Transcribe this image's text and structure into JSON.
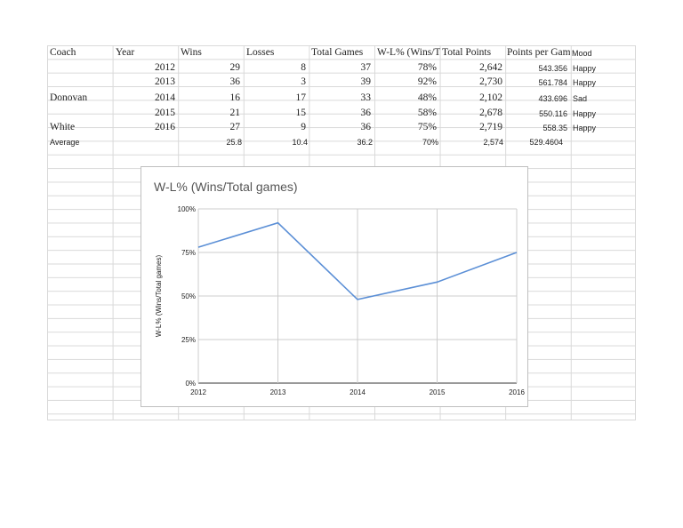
{
  "table": {
    "headers": [
      "Coach",
      "Year",
      "Wins",
      "Losses",
      "Total Games",
      "W-L% (Wins/T",
      "Total Points",
      "Points per Gam",
      "Mood"
    ],
    "rows": [
      {
        "coach": "",
        "year": "2012",
        "wins": "29",
        "losses": "8",
        "total_games": "37",
        "wl": "78%",
        "total_points": "2,642",
        "ppg": "543.356",
        "mood": "Happy"
      },
      {
        "coach": "",
        "year": "2013",
        "wins": "36",
        "losses": "3",
        "total_games": "39",
        "wl": "92%",
        "total_points": "2,730",
        "ppg": "561.784",
        "mood": "Happy"
      },
      {
        "coach": "Donovan",
        "year": "2014",
        "wins": "16",
        "losses": "17",
        "total_games": "33",
        "wl": "48%",
        "total_points": "2,102",
        "ppg": "433.696",
        "mood": "Sad"
      },
      {
        "coach": "",
        "year": "2015",
        "wins": "21",
        "losses": "15",
        "total_games": "36",
        "wl": "58%",
        "total_points": "2,678",
        "ppg": "550.116",
        "mood": "Happy"
      },
      {
        "coach": "White",
        "year": "2016",
        "wins": "27",
        "losses": "9",
        "total_games": "36",
        "wl": "75%",
        "total_points": "2,719",
        "ppg": "558.35",
        "mood": "Happy"
      }
    ],
    "average": {
      "label": "Average",
      "wins": "25.8",
      "losses": "10.4",
      "total_games": "36.2",
      "wl": "70%",
      "total_points": "2,574",
      "ppg": "529.4604"
    }
  },
  "chart_data": {
    "type": "line",
    "title": "W-L% (Wins/Total games)",
    "xlabel": "",
    "ylabel": "W-L% (Wins/Total games)",
    "x": [
      "2012",
      "2013",
      "2014",
      "2015",
      "2016"
    ],
    "series": [
      {
        "values": [
          78,
          92,
          48,
          58,
          75
        ]
      }
    ],
    "ylim": [
      0,
      100
    ],
    "yticks": [
      "0%",
      "25%",
      "50%",
      "75%",
      "100%"
    ],
    "grid": true,
    "line_color": "#5b8fd6"
  }
}
